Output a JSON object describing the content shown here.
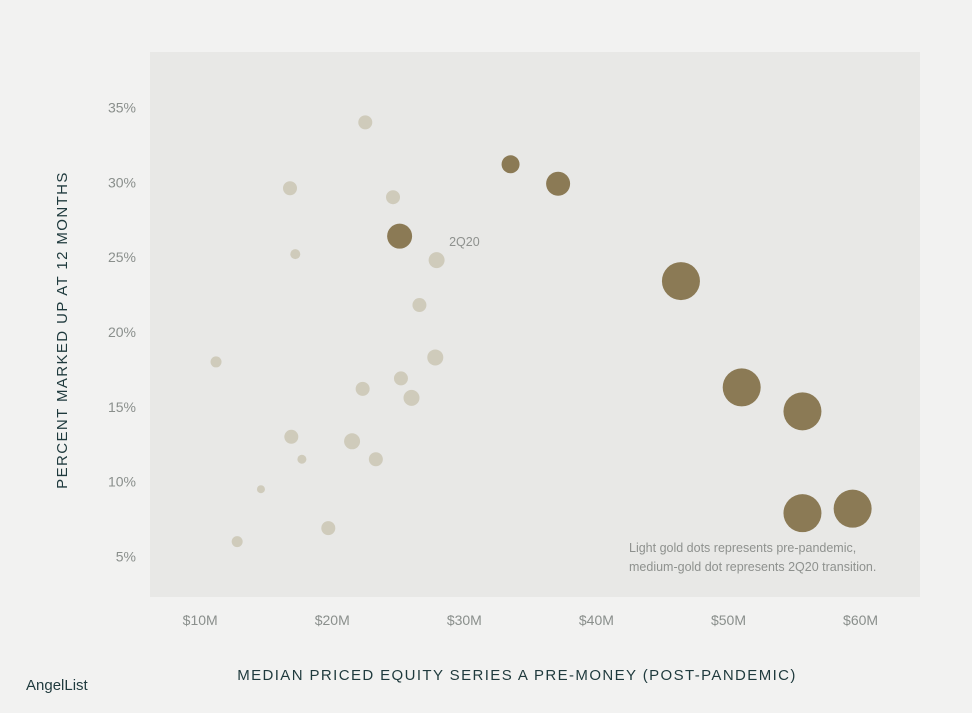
{
  "brand": {
    "name": "AngelList"
  },
  "colors": {
    "background": "#f2f2f1",
    "plot_background": "#e8e8e6",
    "pre_pandemic": "#cfcbbb",
    "post_pandemic": "#8b7a55",
    "text_dark": "#1f3a3d",
    "text_muted": "#8a8f8c"
  },
  "chart_data": {
    "type": "scatter",
    "xlabel": "MEDIAN PRICED EQUITY SERIES A PRE-MONEY (POST-PANDEMIC)",
    "ylabel": "PERCENT MARKED UP AT 12 MONTHS",
    "xlim": [
      6.2,
      64.5
    ],
    "ylim": [
      2.3,
      38.7
    ],
    "x_ticks": [
      {
        "value": 10,
        "label": "$10M"
      },
      {
        "value": 20,
        "label": "$20M"
      },
      {
        "value": 30,
        "label": "$30M"
      },
      {
        "value": 40,
        "label": "$40M"
      },
      {
        "value": 50,
        "label": "$50M"
      },
      {
        "value": 60,
        "label": "$60M"
      }
    ],
    "y_ticks": [
      {
        "value": 5,
        "label": "5%"
      },
      {
        "value": 10,
        "label": "10%"
      },
      {
        "value": 15,
        "label": "15%"
      },
      {
        "value": 20,
        "label": "20%"
      },
      {
        "value": 25,
        "label": "25%"
      },
      {
        "value": 30,
        "label": "30%"
      },
      {
        "value": 35,
        "label": "35%"
      }
    ],
    "grid": false,
    "series": [
      {
        "group": "pre-pandemic",
        "color": "#cfcbbb",
        "points": [
          {
            "x": 22.5,
            "y": 34.0,
            "size": 7
          },
          {
            "x": 16.8,
            "y": 29.6,
            "size": 7
          },
          {
            "x": 24.6,
            "y": 29.0,
            "size": 7
          },
          {
            "x": 17.2,
            "y": 25.2,
            "size": 5
          },
          {
            "x": 27.9,
            "y": 24.8,
            "size": 8
          },
          {
            "x": 26.6,
            "y": 21.8,
            "size": 7
          },
          {
            "x": 11.2,
            "y": 18.0,
            "size": 5.5
          },
          {
            "x": 27.8,
            "y": 18.3,
            "size": 8
          },
          {
            "x": 22.3,
            "y": 16.2,
            "size": 7
          },
          {
            "x": 25.2,
            "y": 16.9,
            "size": 7
          },
          {
            "x": 26.0,
            "y": 15.6,
            "size": 8
          },
          {
            "x": 16.9,
            "y": 13.0,
            "size": 7
          },
          {
            "x": 21.5,
            "y": 12.7,
            "size": 8
          },
          {
            "x": 17.7,
            "y": 11.5,
            "size": 4.5
          },
          {
            "x": 23.3,
            "y": 11.5,
            "size": 7
          },
          {
            "x": 14.6,
            "y": 9.5,
            "size": 4
          },
          {
            "x": 19.7,
            "y": 6.9,
            "size": 7
          },
          {
            "x": 12.8,
            "y": 6.0,
            "size": 5.5
          }
        ]
      },
      {
        "group": "post-pandemic",
        "color": "#8b7a55",
        "points": [
          {
            "x": 25.1,
            "y": 26.4,
            "size": 12.5,
            "label": "2Q20"
          },
          {
            "x": 33.5,
            "y": 31.2,
            "size": 9
          },
          {
            "x": 37.1,
            "y": 29.9,
            "size": 12
          },
          {
            "x": 46.4,
            "y": 23.4,
            "size": 19
          },
          {
            "x": 51.0,
            "y": 16.3,
            "size": 19
          },
          {
            "x": 55.6,
            "y": 14.7,
            "size": 19
          },
          {
            "x": 55.6,
            "y": 7.9,
            "size": 19
          },
          {
            "x": 59.4,
            "y": 8.2,
            "size": 19
          }
        ]
      }
    ],
    "annotation": [
      "Light gold dots represents pre-pandemic,",
      "medium-gold dot represents 2Q20 transition."
    ]
  }
}
